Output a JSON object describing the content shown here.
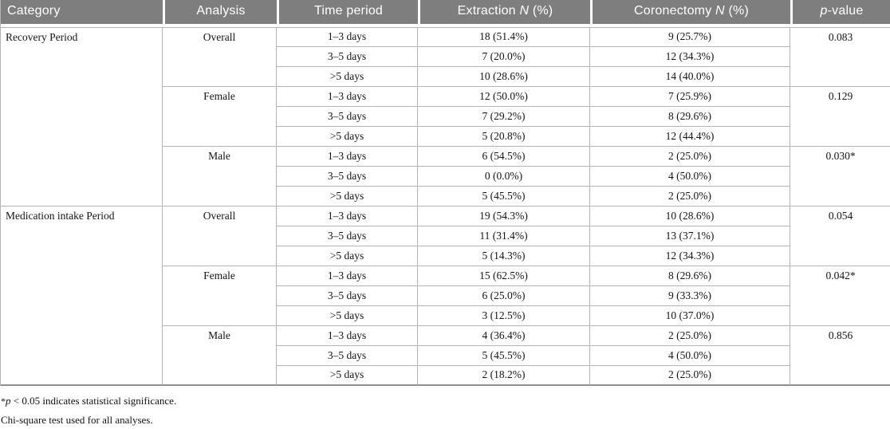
{
  "table": {
    "header": {
      "category": "Category",
      "analysis": "Analysis",
      "time_period": "Time period",
      "extraction_prefix": "Extraction ",
      "extraction_italic": "N",
      "extraction_suffix": " (%)",
      "coronectomy_prefix": "Coronectomy ",
      "coronectomy_italic": "N",
      "coronectomy_suffix": " (%)",
      "pvalue_italic": "p",
      "pvalue_suffix": "-value"
    },
    "groups": [
      {
        "category": "Recovery Period",
        "analyses": [
          {
            "name": "Overall",
            "p_value": "0.083",
            "rows": [
              {
                "time": "1–3 days",
                "extraction": "18 (51.4%)",
                "coronectomy": "9 (25.7%)"
              },
              {
                "time": "3–5 days",
                "extraction": "7 (20.0%)",
                "coronectomy": "12 (34.3%)"
              },
              {
                "time": ">5 days",
                "extraction": "10 (28.6%)",
                "coronectomy": "14 (40.0%)"
              }
            ]
          },
          {
            "name": "Female",
            "p_value": "0.129",
            "rows": [
              {
                "time": "1–3 days",
                "extraction": "12 (50.0%)",
                "coronectomy": "7 (25.9%)"
              },
              {
                "time": "3–5 days",
                "extraction": "7 (29.2%)",
                "coronectomy": "8 (29.6%)"
              },
              {
                "time": ">5 days",
                "extraction": "5 (20.8%)",
                "coronectomy": "12 (44.4%)"
              }
            ]
          },
          {
            "name": "Male",
            "p_value": "0.030*",
            "rows": [
              {
                "time": "1–3 days",
                "extraction": "6 (54.5%)",
                "coronectomy": "2 (25.0%)"
              },
              {
                "time": "3–5 days",
                "extraction": "0 (0.0%)",
                "coronectomy": "4 (50.0%)"
              },
              {
                "time": ">5 days",
                "extraction": "5 (45.5%)",
                "coronectomy": "2 (25.0%)"
              }
            ]
          }
        ]
      },
      {
        "category": "Medication intake Period",
        "analyses": [
          {
            "name": "Overall",
            "p_value": "0.054",
            "rows": [
              {
                "time": "1–3 days",
                "extraction": "19 (54.3%)",
                "coronectomy": "10 (28.6%)"
              },
              {
                "time": "3–5 days",
                "extraction": "11 (31.4%)",
                "coronectomy": "13 (37.1%)"
              },
              {
                "time": ">5 days",
                "extraction": "5 (14.3%)",
                "coronectomy": "12 (34.3%)"
              }
            ]
          },
          {
            "name": "Female",
            "p_value": "0.042*",
            "rows": [
              {
                "time": "1–3 days",
                "extraction": "15 (62.5%)",
                "coronectomy": "8 (29.6%)"
              },
              {
                "time": "3–5 days",
                "extraction": "6 (25.0%)",
                "coronectomy": "9 (33.3%)"
              },
              {
                "time": ">5 days",
                "extraction": "3 (12.5%)",
                "coronectomy": "10 (37.0%)"
              }
            ]
          },
          {
            "name": "Male",
            "p_value": "0.856",
            "rows": [
              {
                "time": "1–3 days",
                "extraction": "4 (36.4%)",
                "coronectomy": "2 (25.0%)"
              },
              {
                "time": "3–5 days",
                "extraction": "5 (45.5%)",
                "coronectomy": "4 (50.0%)"
              },
              {
                "time": ">5 days",
                "extraction": "2 (18.2%)",
                "coronectomy": "2 (25.0%)"
              }
            ]
          }
        ]
      }
    ]
  },
  "footnotes": {
    "line1": {
      "star": "*",
      "italic": "p",
      "text": " < 0.05 indicates statistical significance."
    },
    "line2": {
      "text": "Chi-square test used for all analyses."
    }
  }
}
